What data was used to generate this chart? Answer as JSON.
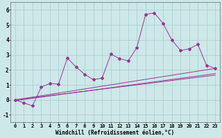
{
  "x": [
    0,
    1,
    2,
    3,
    4,
    5,
    6,
    7,
    8,
    9,
    10,
    11,
    12,
    13,
    14,
    15,
    16,
    17,
    18,
    19,
    20,
    21,
    22,
    23
  ],
  "y_main": [
    0.0,
    -0.2,
    -0.4,
    0.85,
    1.1,
    1.05,
    2.8,
    2.2,
    1.7,
    1.35,
    1.45,
    3.05,
    2.75,
    2.6,
    3.5,
    5.7,
    5.8,
    5.1,
    4.0,
    3.3,
    3.4,
    3.7,
    2.3,
    2.1
  ],
  "reg1": [
    0.0,
    2.1
  ],
  "reg2": [
    0.0,
    1.65
  ],
  "reg3": [
    -0.05,
    1.75
  ],
  "line_color": "#993399",
  "bg_color": "#cce8e8",
  "grid_color": "#aacccc",
  "xlabel": "Windchill (Refroidissement éolien,°C)",
  "ylim": [
    -1.5,
    6.5
  ],
  "xlim": [
    -0.5,
    23.5
  ],
  "yticks": [
    -1,
    0,
    1,
    2,
    3,
    4,
    5,
    6
  ],
  "xticks": [
    0,
    1,
    2,
    3,
    4,
    5,
    6,
    7,
    8,
    9,
    10,
    11,
    12,
    13,
    14,
    15,
    16,
    17,
    18,
    19,
    20,
    21,
    22,
    23
  ],
  "tick_fontsize": 5.0,
  "xlabel_fontsize": 5.5
}
